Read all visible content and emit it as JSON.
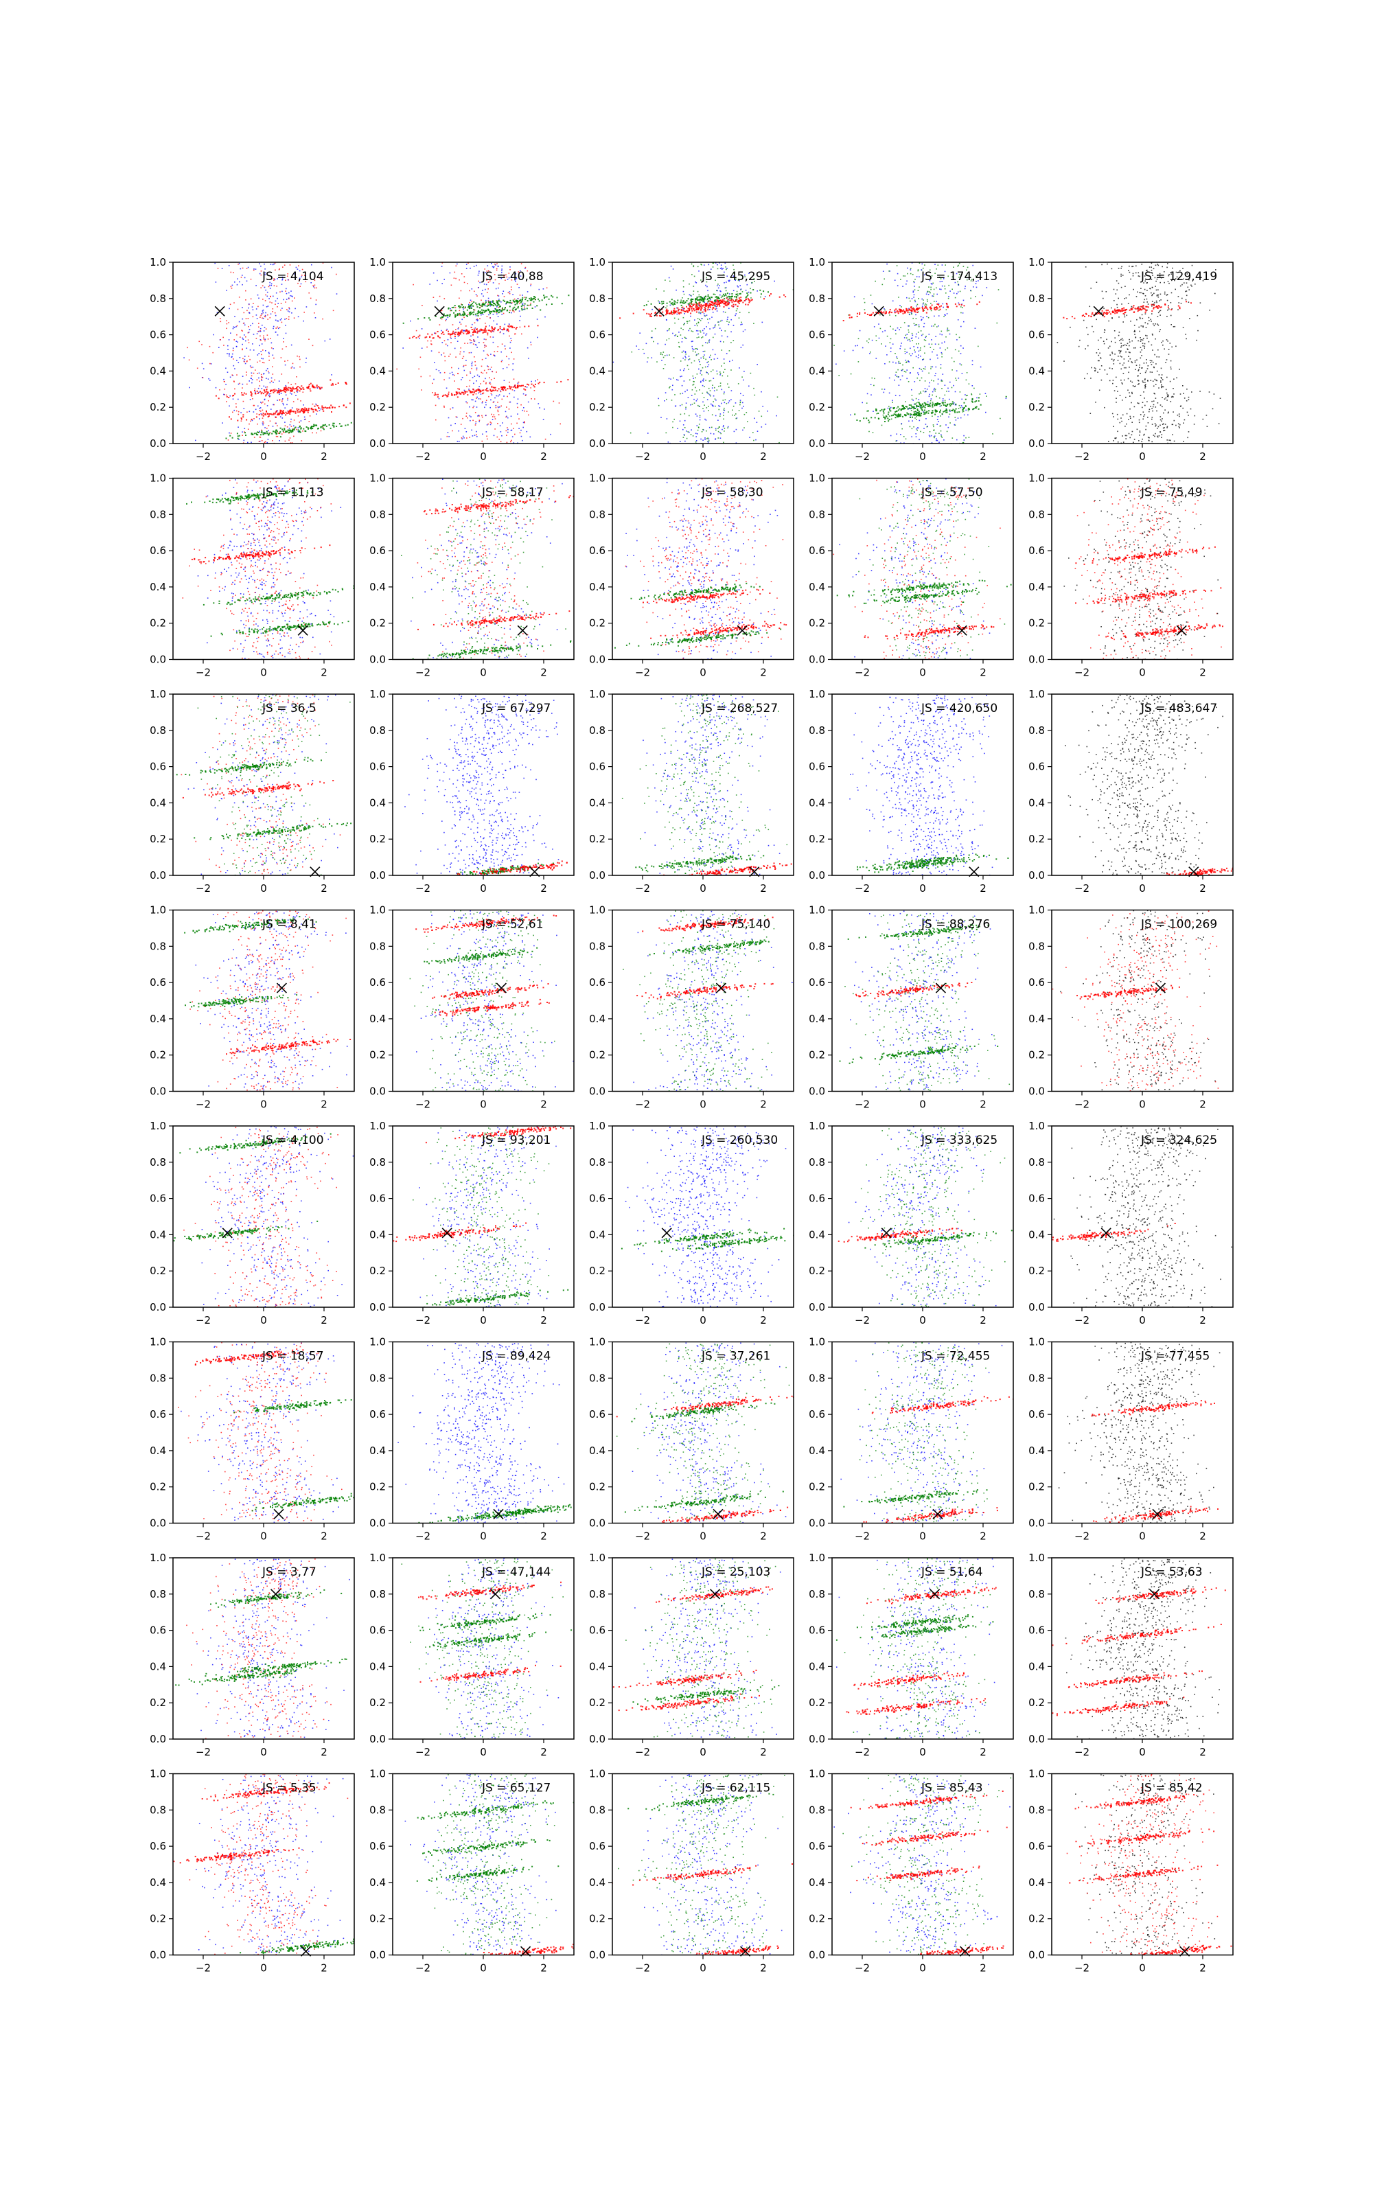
{
  "chart_data": {
    "type": "scatter",
    "layout": {
      "rows": 8,
      "cols": 5
    },
    "axes": {
      "xlim": [
        -3,
        3
      ],
      "ylim": [
        0,
        1
      ],
      "xticks": [
        -2,
        0,
        2
      ],
      "yticks": [
        0.0,
        0.2,
        0.4,
        0.6,
        0.8,
        1.0
      ]
    },
    "colors": {
      "blue": "#0000ff",
      "green": "#008000",
      "red": "#ff0000",
      "black": "#000000"
    },
    "panels": [
      {
        "js": "JS = 4,104",
        "marker": [
          -1.45,
          0.73
        ],
        "bands": [
          {
            "y": 0.08,
            "x": 1.0,
            "color": "green"
          },
          {
            "y": 0.18,
            "x": 1.0,
            "color": "red"
          },
          {
            "y": 0.3,
            "x": 0.7,
            "color": "red"
          }
        ],
        "bg": [
          "blue",
          "red"
        ]
      },
      {
        "js": "JS = 40,88",
        "marker": [
          -1.45,
          0.73
        ],
        "bands": [
          {
            "y": 0.73,
            "x": 0.0,
            "color": "green"
          },
          {
            "y": 0.78,
            "x": 0.5,
            "color": "green"
          },
          {
            "y": 0.62,
            "x": -0.5,
            "color": "red"
          },
          {
            "y": 0.3,
            "x": 0.2,
            "color": "red"
          }
        ],
        "bg": [
          "blue",
          "red"
        ]
      },
      {
        "js": "JS = 45,295",
        "marker": [
          -1.45,
          0.73
        ],
        "bands": [
          {
            "y": 0.74,
            "x": -0.5,
            "color": "red"
          },
          {
            "y": 0.78,
            "x": 0.5,
            "color": "red"
          },
          {
            "y": 0.8,
            "x": 0.0,
            "color": "green"
          }
        ],
        "bg": [
          "blue",
          "green"
        ]
      },
      {
        "js": "JS = 174,413",
        "marker": [
          -1.45,
          0.73
        ],
        "bands": [
          {
            "y": 0.74,
            "x": -0.5,
            "color": "red"
          },
          {
            "y": 0.17,
            "x": 0.0,
            "color": "green"
          },
          {
            "y": 0.21,
            "x": 0.0,
            "color": "green"
          }
        ],
        "bg": [
          "blue",
          "green"
        ]
      },
      {
        "js": "JS = 129,419",
        "marker": [
          -1.45,
          0.73
        ],
        "bands": [
          {
            "y": 0.74,
            "x": -0.5,
            "color": "red"
          }
        ],
        "bg": [
          "black"
        ]
      },
      {
        "js": "JS = 11,13",
        "marker": [
          1.3,
          0.16
        ],
        "bands": [
          {
            "y": 0.18,
            "x": 0.8,
            "color": "green"
          },
          {
            "y": 0.35,
            "x": 0.5,
            "color": "green"
          },
          {
            "y": 0.58,
            "x": -0.5,
            "color": "red"
          },
          {
            "y": 0.9,
            "x": -0.5,
            "color": "green"
          }
        ],
        "bg": [
          "blue",
          "red"
        ]
      },
      {
        "js": "JS = 58,17",
        "marker": [
          1.3,
          0.16
        ],
        "bands": [
          {
            "y": 0.22,
            "x": 0.5,
            "color": "red"
          },
          {
            "y": 0.05,
            "x": 0.0,
            "color": "green"
          },
          {
            "y": 0.85,
            "x": 0.0,
            "color": "red"
          }
        ],
        "bg": [
          "blue",
          "green",
          "red"
        ]
      },
      {
        "js": "JS = 58,30",
        "marker": [
          1.3,
          0.16
        ],
        "bands": [
          {
            "y": 0.12,
            "x": 0.0,
            "color": "green"
          },
          {
            "y": 0.17,
            "x": 0.8,
            "color": "red"
          },
          {
            "y": 0.38,
            "x": 0.0,
            "color": "green"
          },
          {
            "y": 0.35,
            "x": 0.0,
            "color": "red"
          }
        ],
        "bg": [
          "blue",
          "red"
        ]
      },
      {
        "js": "JS = 57,50",
        "marker": [
          1.3,
          0.16
        ],
        "bands": [
          {
            "y": 0.16,
            "x": 0.5,
            "color": "red"
          },
          {
            "y": 0.35,
            "x": 0.0,
            "color": "green"
          },
          {
            "y": 0.4,
            "x": 0.0,
            "color": "green"
          }
        ],
        "bg": [
          "blue",
          "green",
          "red"
        ]
      },
      {
        "js": "JS = 75,49",
        "marker": [
          1.3,
          0.16
        ],
        "bands": [
          {
            "y": 0.16,
            "x": 0.8,
            "color": "red"
          },
          {
            "y": 0.35,
            "x": 0.0,
            "color": "red"
          },
          {
            "y": 0.58,
            "x": 0.3,
            "color": "red"
          }
        ],
        "bg": [
          "black",
          "red"
        ]
      },
      {
        "js": "JS = 36,5",
        "marker": [
          1.7,
          0.02
        ],
        "bands": [
          {
            "y": 0.25,
            "x": 0.5,
            "color": "green"
          },
          {
            "y": 0.48,
            "x": 0.0,
            "color": "red"
          },
          {
            "y": 0.6,
            "x": -0.5,
            "color": "green"
          }
        ],
        "bg": [
          "blue",
          "green",
          "red"
        ]
      },
      {
        "js": "JS = 67,297",
        "marker": [
          1.7,
          0.02
        ],
        "bands": [
          {
            "y": 0.03,
            "x": 0.5,
            "color": "green"
          },
          {
            "y": 0.04,
            "x": 1.2,
            "color": "red"
          }
        ],
        "bg": [
          "blue"
        ]
      },
      {
        "js": "JS = 268,527",
        "marker": [
          1.7,
          0.02
        ],
        "bands": [
          {
            "y": 0.08,
            "x": 0.0,
            "color": "green"
          },
          {
            "y": 0.03,
            "x": 1.0,
            "color": "red"
          }
        ],
        "bg": [
          "blue",
          "green"
        ]
      },
      {
        "js": "JS = 420,650",
        "marker": [
          1.7,
          0.02
        ],
        "bands": [
          {
            "y": 0.06,
            "x": 0.0,
            "color": "green"
          },
          {
            "y": 0.08,
            "x": 0.0,
            "color": "green"
          }
        ],
        "bg": [
          "blue"
        ]
      },
      {
        "js": "JS = 483,647",
        "marker": [
          1.7,
          0.02
        ],
        "bands": [
          {
            "y": 0.02,
            "x": 2.0,
            "color": "red"
          }
        ],
        "bg": [
          "black"
        ]
      },
      {
        "js": "JS = 8,41",
        "marker": [
          0.6,
          0.57
        ],
        "bands": [
          {
            "y": 0.5,
            "x": -1.0,
            "color": "green"
          },
          {
            "y": 0.92,
            "x": -0.5,
            "color": "green"
          },
          {
            "y": 0.25,
            "x": 0.5,
            "color": "red"
          }
        ],
        "bg": [
          "blue",
          "red"
        ]
      },
      {
        "js": "JS = 52,61",
        "marker": [
          0.6,
          0.57
        ],
        "bands": [
          {
            "y": 0.93,
            "x": 0.0,
            "color": "red"
          },
          {
            "y": 0.55,
            "x": 0.0,
            "color": "red"
          },
          {
            "y": 0.46,
            "x": 0.0,
            "color": "red"
          },
          {
            "y": 0.75,
            "x": 0.0,
            "color": "green"
          }
        ],
        "bg": [
          "blue",
          "green"
        ]
      },
      {
        "js": "JS = 75,140",
        "marker": [
          0.6,
          0.57
        ],
        "bands": [
          {
            "y": 0.56,
            "x": 0.0,
            "color": "red"
          },
          {
            "y": 0.8,
            "x": 0.5,
            "color": "green"
          },
          {
            "y": 0.92,
            "x": 0.0,
            "color": "red"
          }
        ],
        "bg": [
          "blue",
          "green"
        ]
      },
      {
        "js": "JS = 88,276",
        "marker": [
          0.6,
          0.57
        ],
        "bands": [
          {
            "y": 0.56,
            "x": -0.5,
            "color": "red"
          },
          {
            "y": 0.22,
            "x": 0.0,
            "color": "green"
          },
          {
            "y": 0.88,
            "x": 0.0,
            "color": "green"
          }
        ],
        "bg": [
          "blue",
          "green"
        ]
      },
      {
        "js": "JS = 100,269",
        "marker": [
          0.6,
          0.57
        ],
        "bands": [
          {
            "y": 0.55,
            "x": -0.5,
            "color": "red"
          }
        ],
        "bg": [
          "black",
          "red"
        ]
      },
      {
        "js": "JS = 4,100",
        "marker": [
          -1.2,
          0.41
        ],
        "bands": [
          {
            "y": 0.41,
            "x": -1.2,
            "color": "green"
          },
          {
            "y": 0.9,
            "x": -0.5,
            "color": "green"
          }
        ],
        "bg": [
          "blue",
          "red"
        ]
      },
      {
        "js": "JS = 93,201",
        "marker": [
          -1.2,
          0.41
        ],
        "bands": [
          {
            "y": 0.41,
            "x": -1.0,
            "color": "red"
          },
          {
            "y": 0.97,
            "x": 1.0,
            "color": "red"
          },
          {
            "y": 0.05,
            "x": 0.0,
            "color": "green"
          }
        ],
        "bg": [
          "blue",
          "green"
        ]
      },
      {
        "js": "JS = 260,530",
        "marker": [
          -1.2,
          0.41
        ],
        "bands": [
          {
            "y": 0.39,
            "x": 0.0,
            "color": "green"
          },
          {
            "y": 0.36,
            "x": 1.0,
            "color": "green"
          }
        ],
        "bg": [
          "blue"
        ]
      },
      {
        "js": "JS = 333,625",
        "marker": [
          -1.2,
          0.41
        ],
        "bands": [
          {
            "y": 0.4,
            "x": -1.0,
            "color": "red"
          },
          {
            "y": 0.38,
            "x": 0.5,
            "color": "green"
          }
        ],
        "bg": [
          "blue",
          "green"
        ]
      },
      {
        "js": "JS = 324,625",
        "marker": [
          -1.2,
          0.41
        ],
        "bands": [
          {
            "y": 0.4,
            "x": -1.5,
            "color": "red"
          }
        ],
        "bg": [
          "black"
        ]
      },
      {
        "js": "JS = 18,57",
        "marker": [
          0.5,
          0.05
        ],
        "bands": [
          {
            "y": 0.12,
            "x": 1.5,
            "color": "green"
          },
          {
            "y": 0.65,
            "x": 1.0,
            "color": "green"
          },
          {
            "y": 0.92,
            "x": -0.5,
            "color": "red"
          }
        ],
        "bg": [
          "blue",
          "red"
        ]
      },
      {
        "js": "JS = 89,424",
        "marker": [
          0.5,
          0.05
        ],
        "bands": [
          {
            "y": 0.05,
            "x": 0.5,
            "color": "green"
          },
          {
            "y": 0.07,
            "x": 1.5,
            "color": "green"
          }
        ],
        "bg": [
          "blue"
        ]
      },
      {
        "js": "JS = 37,261",
        "marker": [
          0.5,
          0.05
        ],
        "bands": [
          {
            "y": 0.66,
            "x": 0.5,
            "color": "red"
          },
          {
            "y": 0.62,
            "x": 0.0,
            "color": "green"
          },
          {
            "y": 0.04,
            "x": 0.5,
            "color": "red"
          },
          {
            "y": 0.12,
            "x": 0.0,
            "color": "green"
          }
        ],
        "bg": [
          "blue",
          "green"
        ]
      },
      {
        "js": "JS = 72,455",
        "marker": [
          0.5,
          0.05
        ],
        "bands": [
          {
            "y": 0.05,
            "x": 0.5,
            "color": "red"
          },
          {
            "y": 0.65,
            "x": 0.5,
            "color": "red"
          },
          {
            "y": 0.15,
            "x": 0.0,
            "color": "green"
          }
        ],
        "bg": [
          "blue",
          "green"
        ]
      },
      {
        "js": "JS = 77,455",
        "marker": [
          0.5,
          0.05
        ],
        "bands": [
          {
            "y": 0.05,
            "x": 0.5,
            "color": "red"
          },
          {
            "y": 0.64,
            "x": 0.5,
            "color": "red"
          }
        ],
        "bg": [
          "black"
        ]
      },
      {
        "js": "JS = 3,77",
        "marker": [
          0.4,
          0.8
        ],
        "bands": [
          {
            "y": 0.35,
            "x": -0.5,
            "color": "green"
          },
          {
            "y": 0.4,
            "x": 0.5,
            "color": "green"
          },
          {
            "y": 0.78,
            "x": 0.0,
            "color": "green"
          }
        ],
        "bg": [
          "blue",
          "red"
        ]
      },
      {
        "js": "JS = 47,144",
        "marker": [
          0.4,
          0.8
        ],
        "bands": [
          {
            "y": 0.36,
            "x": 0.0,
            "color": "red"
          },
          {
            "y": 0.82,
            "x": 0.0,
            "color": "red"
          },
          {
            "y": 0.65,
            "x": 0.0,
            "color": "green"
          },
          {
            "y": 0.55,
            "x": 0.0,
            "color": "green"
          }
        ],
        "bg": [
          "blue",
          "green"
        ]
      },
      {
        "js": "JS = 25,103",
        "marker": [
          0.4,
          0.8
        ],
        "bands": [
          {
            "y": 0.8,
            "x": 0.5,
            "color": "red"
          },
          {
            "y": 0.33,
            "x": -0.5,
            "color": "red"
          },
          {
            "y": 0.2,
            "x": -0.5,
            "color": "red"
          },
          {
            "y": 0.25,
            "x": 0.0,
            "color": "green"
          }
        ],
        "bg": [
          "blue",
          "green"
        ]
      },
      {
        "js": "JS = 51,64",
        "marker": [
          0.4,
          0.8
        ],
        "bands": [
          {
            "y": 0.8,
            "x": 0.5,
            "color": "red"
          },
          {
            "y": 0.33,
            "x": -0.5,
            "color": "red"
          },
          {
            "y": 0.65,
            "x": 0.0,
            "color": "green"
          },
          {
            "y": 0.6,
            "x": 0.0,
            "color": "green"
          },
          {
            "y": 0.18,
            "x": -0.5,
            "color": "red"
          }
        ],
        "bg": [
          "blue",
          "green"
        ]
      },
      {
        "js": "JS = 53,63",
        "marker": [
          0.4,
          0.8
        ],
        "bands": [
          {
            "y": 0.8,
            "x": 0.5,
            "color": "red"
          },
          {
            "y": 0.33,
            "x": -0.5,
            "color": "red"
          },
          {
            "y": 0.58,
            "x": 0.0,
            "color": "red"
          },
          {
            "y": 0.18,
            "x": -0.8,
            "color": "red"
          }
        ],
        "bg": [
          "black"
        ]
      },
      {
        "js": "JS = 5,35",
        "marker": [
          1.4,
          0.02
        ],
        "bands": [
          {
            "y": 0.05,
            "x": 1.5,
            "color": "green"
          },
          {
            "y": 0.55,
            "x": -1.0,
            "color": "red"
          },
          {
            "y": 0.9,
            "x": 0.0,
            "color": "red"
          }
        ],
        "bg": [
          "blue",
          "red"
        ]
      },
      {
        "js": "JS = 65,127",
        "marker": [
          1.4,
          0.02
        ],
        "bands": [
          {
            "y": 0.45,
            "x": 0.0,
            "color": "green"
          },
          {
            "y": 0.6,
            "x": 0.0,
            "color": "green"
          },
          {
            "y": 0.02,
            "x": 1.5,
            "color": "red"
          },
          {
            "y": 0.8,
            "x": 0.0,
            "color": "green"
          }
        ],
        "bg": [
          "blue",
          "green"
        ]
      },
      {
        "js": "JS = 62,115",
        "marker": [
          1.4,
          0.02
        ],
        "bands": [
          {
            "y": 0.45,
            "x": 0.0,
            "color": "red"
          },
          {
            "y": 0.02,
            "x": 1.0,
            "color": "red"
          },
          {
            "y": 0.85,
            "x": 0.0,
            "color": "green"
          }
        ],
        "bg": [
          "blue",
          "green"
        ]
      },
      {
        "js": "JS = 85,43",
        "marker": [
          1.4,
          0.02
        ],
        "bands": [
          {
            "y": 0.45,
            "x": 0.0,
            "color": "red"
          },
          {
            "y": 0.02,
            "x": 1.0,
            "color": "red"
          },
          {
            "y": 0.65,
            "x": 0.0,
            "color": "red"
          },
          {
            "y": 0.85,
            "x": 0.0,
            "color": "red"
          }
        ],
        "bg": [
          "blue",
          "green"
        ]
      },
      {
        "js": "JS = 85,42",
        "marker": [
          1.4,
          0.02
        ],
        "bands": [
          {
            "y": 0.45,
            "x": 0.0,
            "color": "red"
          },
          {
            "y": 0.02,
            "x": 1.0,
            "color": "red"
          },
          {
            "y": 0.65,
            "x": 0.0,
            "color": "red"
          },
          {
            "y": 0.85,
            "x": 0.0,
            "color": "red"
          }
        ],
        "bg": [
          "black",
          "red"
        ]
      }
    ]
  }
}
